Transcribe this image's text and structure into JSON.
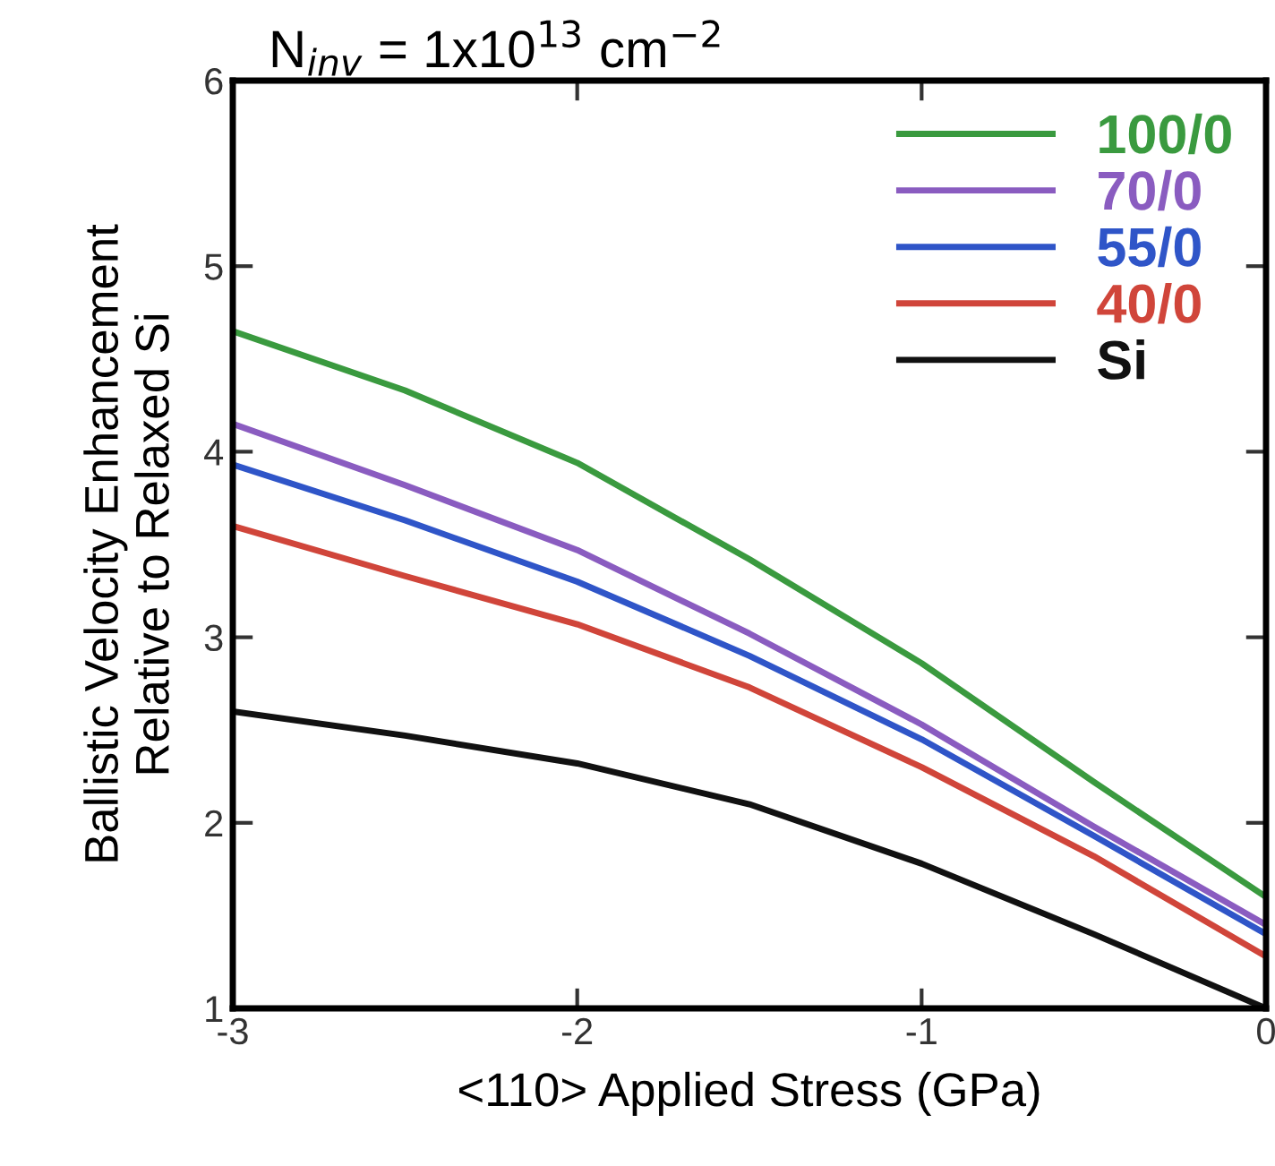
{
  "chart_data": {
    "type": "line",
    "title": "N$_{inv}$ = 1x10$^{13}$ cm$^{−2}$",
    "xlabel": "<110> Applied Stress (GPa)",
    "ylabel": "Ballistic Velocity Enhancement\nRelative to Relaxed Si",
    "x": [
      -3,
      -2.5,
      -2,
      -1.5,
      -1,
      -0.5,
      0
    ],
    "series": [
      {
        "name": "100/0",
        "color": "#3a9a3f",
        "values": [
          4.65,
          4.33,
          3.94,
          3.42,
          2.86,
          2.22,
          1.6
        ]
      },
      {
        "name": "70/0",
        "color": "#8a5cc0",
        "values": [
          4.15,
          3.82,
          3.47,
          3.02,
          2.53,
          1.98,
          1.45
        ]
      },
      {
        "name": "55/0",
        "color": "#2f55c8",
        "values": [
          3.93,
          3.63,
          3.3,
          2.9,
          2.45,
          1.93,
          1.4
        ]
      },
      {
        "name": "40/0",
        "color": "#d0453a",
        "values": [
          3.6,
          3.33,
          3.07,
          2.73,
          2.3,
          1.82,
          1.28
        ]
      },
      {
        "name": "Si",
        "color": "#111111",
        "values": [
          2.6,
          2.47,
          2.32,
          2.1,
          1.78,
          1.4,
          1.0
        ]
      }
    ],
    "xlim": [
      -3,
      0
    ],
    "xticks": [
      -3,
      -2,
      -1,
      0
    ],
    "ylim": [
      1,
      6
    ],
    "yticks": [
      1,
      2,
      3,
      4,
      5,
      6
    ],
    "grid": false,
    "legend": "top right",
    "line_style": "solid",
    "marker": "none"
  }
}
